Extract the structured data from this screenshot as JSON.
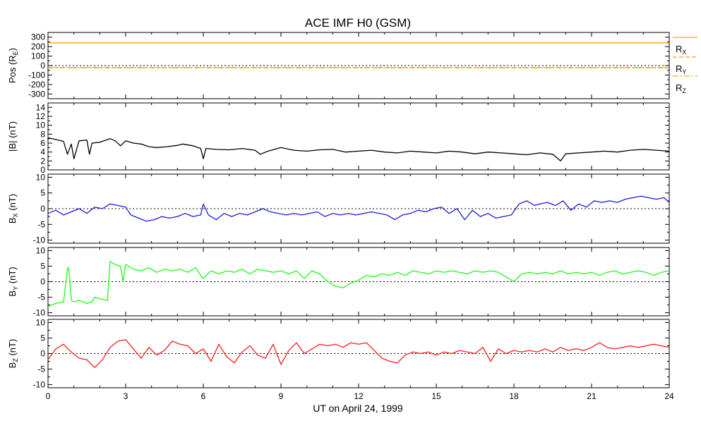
{
  "title": "ACE IMF H0 (GSM)",
  "x_axis": {
    "label": "UT on April 24, 1999",
    "range": [
      0,
      24
    ],
    "ticks": [
      "0",
      "3",
      "6",
      "9",
      "12",
      "15",
      "18",
      "21",
      "24"
    ],
    "minor_per_major": 3
  },
  "colors": {
    "pos": "#ffa500",
    "b_total": "#000000",
    "bx": "#1a1adc",
    "by": "#1aff1a",
    "bz": "#ff1a1a",
    "zero_line": "#000000"
  },
  "chart_data": [
    {
      "id": "pos",
      "type": "line",
      "ylabel": "Pos (RE)",
      "ylim": [
        -350,
        350
      ],
      "yticks": [
        300,
        200,
        100,
        0,
        -100,
        -200,
        -300
      ],
      "zero_dotted": true,
      "legend": [
        "RX",
        "RY",
        "RZ"
      ],
      "series": [
        {
          "name": "RX",
          "x": [
            0,
            24
          ],
          "y": [
            240,
            240
          ],
          "style": "solid"
        },
        {
          "name": "RY",
          "x": [
            0,
            24
          ],
          "y": [
            -20,
            -20
          ],
          "style": "dashed"
        },
        {
          "name": "RZ",
          "x": [
            0,
            24
          ],
          "y": [
            -24,
            -24
          ],
          "style": "dashdot"
        }
      ]
    },
    {
      "id": "b_total",
      "type": "line",
      "ylabel": "|B| (nT)",
      "ylim": [
        0,
        15
      ],
      "yticks": [
        0,
        2,
        4,
        6,
        8,
        10,
        12,
        14
      ],
      "zero_dotted": false,
      "series": [
        {
          "name": "|B|",
          "x": [
            0,
            0.3,
            0.6,
            0.75,
            0.9,
            1.0,
            1.2,
            1.5,
            1.6,
            1.7,
            2.0,
            2.4,
            2.6,
            2.8,
            3.0,
            3.3,
            3.6,
            3.9,
            4.2,
            4.6,
            5.0,
            5.2,
            5.6,
            5.9,
            6.0,
            6.1,
            6.5,
            7.0,
            7.5,
            8.0,
            8.2,
            8.5,
            9.0,
            9.5,
            10.0,
            10.5,
            11.0,
            11.5,
            12.0,
            12.5,
            13.0,
            13.5,
            14.0,
            14.5,
            15.0,
            15.5,
            16.0,
            16.5,
            17.0,
            17.5,
            18.0,
            18.5,
            19.0,
            19.5,
            19.8,
            20.0,
            20.5,
            21.0,
            21.5,
            22.0,
            22.5,
            23.0,
            23.5,
            24.0
          ],
          "y": [
            7.2,
            6.8,
            6.4,
            3.5,
            5.8,
            2.5,
            6.5,
            6.7,
            3.5,
            6.0,
            6.2,
            7.0,
            6.5,
            5.4,
            6.5,
            6.0,
            5.8,
            5.2,
            5.0,
            5.2,
            5.5,
            5.8,
            5.4,
            4.8,
            2.5,
            4.8,
            4.6,
            4.5,
            4.8,
            4.4,
            3.5,
            4.2,
            5.0,
            4.4,
            4.2,
            4.5,
            4.6,
            4.0,
            4.2,
            4.4,
            4.0,
            3.8,
            4.2,
            4.0,
            3.8,
            4.2,
            4.0,
            3.6,
            4.0,
            3.8,
            3.6,
            3.4,
            3.8,
            3.5,
            2.0,
            3.6,
            3.8,
            4.0,
            4.2,
            4.0,
            4.4,
            4.6,
            4.4,
            4.2
          ]
        }
      ]
    },
    {
      "id": "bx",
      "type": "line",
      "ylabel": "BX (nT)",
      "ylim": [
        -11,
        11
      ],
      "yticks": [
        10,
        5,
        0,
        -5,
        -10
      ],
      "zero_dotted": true,
      "series": [
        {
          "name": "BX",
          "x": [
            0,
            0.3,
            0.6,
            0.9,
            1.2,
            1.5,
            1.8,
            2.1,
            2.4,
            2.7,
            3.0,
            3.2,
            3.5,
            3.8,
            4.1,
            4.4,
            4.7,
            5.0,
            5.3,
            5.6,
            5.9,
            6.0,
            6.2,
            6.5,
            6.8,
            7.1,
            7.4,
            7.7,
            8.0,
            8.3,
            8.6,
            8.9,
            9.2,
            9.5,
            9.8,
            10.1,
            10.4,
            10.7,
            11.0,
            11.3,
            11.6,
            11.9,
            12.2,
            12.5,
            12.8,
            13.1,
            13.4,
            13.7,
            14.0,
            14.3,
            14.6,
            14.9,
            15.2,
            15.5,
            15.8,
            16.1,
            16.4,
            16.7,
            17.0,
            17.3,
            17.6,
            17.9,
            18.2,
            18.5,
            18.8,
            19.0,
            19.3,
            19.6,
            19.9,
            20.2,
            20.5,
            20.8,
            21.1,
            21.4,
            21.7,
            22.0,
            22.3,
            22.6,
            22.9,
            23.2,
            23.5,
            23.8,
            24.0
          ],
          "y": [
            -1.5,
            -0.5,
            -2.0,
            -1.0,
            0.0,
            -1.5,
            0.5,
            0.0,
            1.5,
            1.0,
            0.5,
            -2.0,
            -3.0,
            -4.0,
            -3.5,
            -2.5,
            -3.0,
            -2.5,
            -1.5,
            -2.5,
            -2.0,
            1.5,
            -2.0,
            -3.5,
            -1.5,
            -2.5,
            -1.5,
            -2.0,
            -1.0,
            0.0,
            -1.0,
            -1.5,
            -2.0,
            -1.5,
            -2.0,
            -1.5,
            -1.0,
            -2.5,
            -1.5,
            -2.0,
            -1.5,
            -2.0,
            -1.5,
            -1.0,
            -1.5,
            -2.0,
            -3.5,
            -2.0,
            -1.5,
            -0.5,
            -1.0,
            0.0,
            0.5,
            -1.5,
            0.0,
            -3.5,
            -0.5,
            -2.5,
            -1.5,
            -3.0,
            -2.5,
            -2.0,
            1.5,
            2.5,
            1.0,
            1.5,
            2.0,
            1.0,
            2.5,
            -0.5,
            1.5,
            0.5,
            2.5,
            2.0,
            2.5,
            2.0,
            3.0,
            3.5,
            4.0,
            3.5,
            3.0,
            3.5,
            2.0
          ]
        }
      ]
    },
    {
      "id": "by",
      "type": "line",
      "ylabel": "BY (nT)",
      "ylim": [
        -11,
        11
      ],
      "yticks": [
        10,
        5,
        0,
        -5,
        -10
      ],
      "zero_dotted": true,
      "series": [
        {
          "name": "BY",
          "x": [
            0,
            0.3,
            0.6,
            0.75,
            0.8,
            0.9,
            1.0,
            1.2,
            1.5,
            1.7,
            1.8,
            2.0,
            2.3,
            2.4,
            2.6,
            2.8,
            2.9,
            3.0,
            3.3,
            3.6,
            3.9,
            4.2,
            4.5,
            4.8,
            5.1,
            5.4,
            5.7,
            5.9,
            6.0,
            6.3,
            6.6,
            6.9,
            7.2,
            7.5,
            7.8,
            8.1,
            8.4,
            8.7,
            9.0,
            9.3,
            9.6,
            9.9,
            10.2,
            10.5,
            10.8,
            11.1,
            11.4,
            11.7,
            12.0,
            12.3,
            12.6,
            12.9,
            13.2,
            13.5,
            13.8,
            14.1,
            14.4,
            14.7,
            15.0,
            15.3,
            15.6,
            15.9,
            16.2,
            16.5,
            16.8,
            17.1,
            17.4,
            17.7,
            18.0,
            18.3,
            18.6,
            18.9,
            19.2,
            19.5,
            19.8,
            20.1,
            20.4,
            20.7,
            21.0,
            21.3,
            21.6,
            21.9,
            22.2,
            22.5,
            22.8,
            23.1,
            23.4,
            23.7,
            24.0
          ],
          "y": [
            -8.0,
            -7.0,
            -6.5,
            4.0,
            4.5,
            -6.0,
            -6.5,
            -6.0,
            -7.0,
            -6.5,
            -5.0,
            -5.5,
            -6.0,
            6.5,
            5.5,
            5.0,
            0.0,
            5.5,
            4.0,
            3.5,
            4.5,
            3.0,
            4.0,
            3.5,
            4.0,
            3.0,
            4.5,
            2.0,
            1.0,
            3.5,
            2.5,
            3.5,
            3.0,
            4.0,
            2.5,
            4.0,
            3.5,
            3.0,
            3.5,
            2.5,
            3.5,
            1.0,
            3.5,
            2.5,
            0.0,
            -1.5,
            -2.0,
            -0.5,
            0.5,
            2.0,
            1.5,
            2.5,
            2.0,
            3.0,
            2.0,
            3.5,
            3.0,
            2.5,
            3.5,
            3.0,
            3.5,
            3.0,
            2.5,
            3.5,
            3.0,
            3.5,
            3.0,
            1.5,
            0.0,
            2.5,
            3.0,
            2.5,
            3.0,
            2.5,
            3.5,
            2.5,
            3.0,
            2.5,
            3.0,
            2.0,
            3.0,
            3.5,
            2.5,
            3.0,
            3.5,
            3.0,
            2.0,
            3.0,
            3.5
          ]
        }
      ]
    },
    {
      "id": "bz",
      "type": "line",
      "ylabel": "BZ (nT)",
      "ylim": [
        -11,
        11
      ],
      "yticks": [
        10,
        5,
        0,
        -5,
        -10
      ],
      "zero_dotted": true,
      "series": [
        {
          "name": "BZ",
          "x": [
            0,
            0.3,
            0.6,
            0.9,
            1.2,
            1.5,
            1.8,
            2.1,
            2.4,
            2.7,
            3.0,
            3.3,
            3.6,
            3.9,
            4.2,
            4.5,
            4.8,
            5.1,
            5.4,
            5.7,
            6.0,
            6.3,
            6.6,
            6.9,
            7.2,
            7.5,
            7.8,
            8.1,
            8.4,
            8.7,
            9.0,
            9.3,
            9.6,
            9.9,
            10.2,
            10.5,
            10.8,
            11.1,
            11.4,
            11.7,
            12.0,
            12.3,
            12.6,
            12.9,
            13.2,
            13.5,
            13.8,
            14.1,
            14.4,
            14.7,
            15.0,
            15.3,
            15.6,
            15.9,
            16.2,
            16.5,
            16.8,
            17.1,
            17.4,
            17.7,
            18.0,
            18.3,
            18.6,
            18.9,
            19.2,
            19.5,
            19.8,
            20.1,
            20.4,
            20.7,
            21.0,
            21.3,
            21.6,
            21.9,
            22.2,
            22.5,
            22.8,
            23.1,
            23.4,
            23.7,
            24.0
          ],
          "y": [
            -2.0,
            1.5,
            3.0,
            0.5,
            -1.5,
            -2.0,
            -4.5,
            -2.0,
            2.0,
            4.0,
            4.5,
            1.5,
            -1.5,
            2.0,
            -0.5,
            1.0,
            4.0,
            3.0,
            2.5,
            0.0,
            1.5,
            -2.5,
            3.0,
            -1.0,
            -3.0,
            0.5,
            2.5,
            -0.5,
            -1.5,
            3.0,
            -3.5,
            1.0,
            3.5,
            0.0,
            1.5,
            3.0,
            2.5,
            3.0,
            2.0,
            3.5,
            3.0,
            3.5,
            1.0,
            -1.5,
            -2.5,
            -3.0,
            -0.5,
            0.5,
            0.0,
            0.5,
            -0.5,
            0.5,
            0.0,
            1.0,
            0.5,
            0.0,
            2.0,
            -2.5,
            1.5,
            0.0,
            1.0,
            0.5,
            1.0,
            0.5,
            1.5,
            0.5,
            2.0,
            1.0,
            1.5,
            1.0,
            2.0,
            3.5,
            2.0,
            1.5,
            2.0,
            2.5,
            2.0,
            2.5,
            3.0,
            2.5,
            2.0
          ]
        }
      ]
    }
  ]
}
